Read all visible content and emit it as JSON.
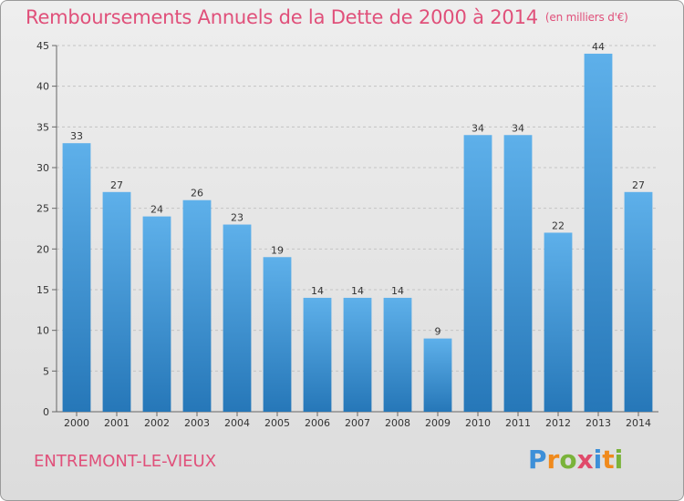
{
  "header": {
    "title": "Remboursements Annuels de la Dette de 2000 à 2014",
    "unit": "(en milliers d'€)"
  },
  "footer": {
    "commune": "ENTREMONT-LE-VIEUX",
    "logo": [
      "P",
      "r",
      "o",
      "x",
      "i",
      "t",
      "i"
    ]
  },
  "colors": {
    "bar_top": "#5eb0ea",
    "bar_bottom": "#2677b8",
    "title": "#e0507a"
  },
  "chart_data": {
    "type": "bar",
    "title": "Remboursements Annuels de la Dette de 2000 à 2014",
    "xlabel": "",
    "ylabel": "",
    "ylim": [
      0,
      45
    ],
    "yticks": [
      0,
      5,
      10,
      15,
      20,
      25,
      30,
      35,
      40,
      45
    ],
    "grid": true,
    "categories": [
      "2000",
      "2001",
      "2002",
      "2003",
      "2004",
      "2005",
      "2006",
      "2007",
      "2008",
      "2009",
      "2010",
      "2011",
      "2012",
      "2013",
      "2014"
    ],
    "values": [
      33,
      27,
      24,
      26,
      23,
      19,
      14,
      14,
      14,
      9,
      34,
      34,
      22,
      44,
      27
    ]
  }
}
